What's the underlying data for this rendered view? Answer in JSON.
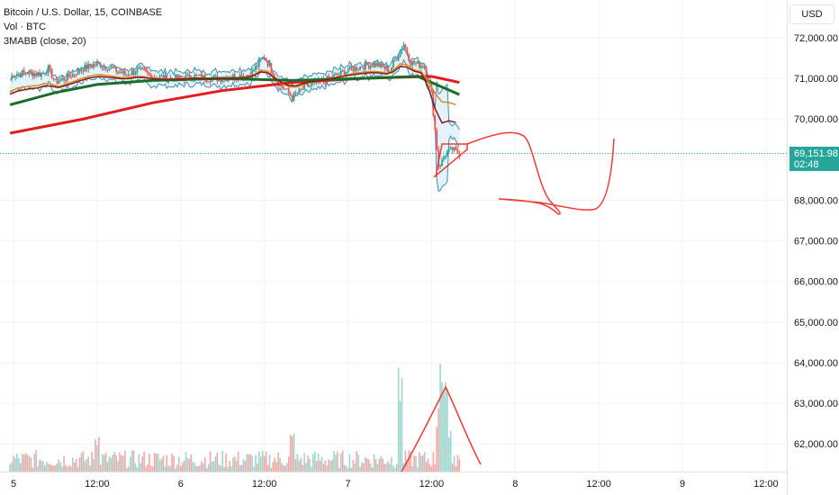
{
  "legend": {
    "symbol": "Bitcoin / U.S. Dollar, 15, COINBASE",
    "volume": "Vol · BTC",
    "indicator": "3MABB (close, 20)"
  },
  "currency_button": "USD",
  "last_price": {
    "value": "69,151.98",
    "countdown": "02:48",
    "color": "#26a69a"
  },
  "colors": {
    "up": "#26a69a",
    "down": "#ef5350",
    "vol_up": "#9fd5cf",
    "vol_down": "#f4a8a6",
    "ma_long": "#e02020",
    "ma_mid": "#1e6b2a",
    "ma_short": "#8b1a1a",
    "ma_fast": "#e08a1e",
    "band": "#3d8fb5",
    "band_fill": "#e3f2fb",
    "drawing": "#ef3b36",
    "grid": "#f0f3fa"
  },
  "chart_data": {
    "type": "candlestick",
    "price_axis": {
      "ticks": [
        "72,000.00",
        "71,000.00",
        "70,000.00",
        "69,000.00",
        "68,000.00",
        "67,000.00",
        "66,000.00",
        "65,000.00",
        "64,000.00",
        "63,000.00",
        "62,000.00"
      ],
      "tick_values": [
        72000,
        71000,
        70000,
        69000,
        68000,
        67000,
        66000,
        65000,
        64000,
        63000,
        62000
      ]
    },
    "time_axis": {
      "labels": [
        "5",
        "12:00",
        "6",
        "12:00",
        "7",
        "12:00",
        "8",
        "12:00",
        "9",
        "12:00"
      ],
      "label_times": [
        0,
        12,
        24,
        36,
        48,
        60,
        72,
        84,
        96,
        108
      ]
    },
    "last_price": 69151.98,
    "price_points_hours": [
      [
        -0.5,
        71000
      ],
      [
        0,
        71100
      ],
      [
        2,
        71150
      ],
      [
        4,
        71100
      ],
      [
        5,
        71250
      ],
      [
        6,
        70900
      ],
      [
        8,
        71050
      ],
      [
        10,
        71250
      ],
      [
        12,
        71350
      ],
      [
        14,
        71250
      ],
      [
        16,
        71100
      ],
      [
        18,
        71200
      ],
      [
        20,
        71050
      ],
      [
        22,
        71000
      ],
      [
        24,
        71000
      ],
      [
        26,
        71050
      ],
      [
        28,
        71000
      ],
      [
        30,
        71000
      ],
      [
        32,
        71050
      ],
      [
        34,
        71100
      ],
      [
        36,
        71550
      ],
      [
        38,
        70900
      ],
      [
        40,
        70550
      ],
      [
        42,
        70800
      ],
      [
        44,
        70900
      ],
      [
        46,
        71050
      ],
      [
        48,
        71200
      ],
      [
        50,
        71300
      ],
      [
        52,
        71350
      ],
      [
        54,
        71200
      ],
      [
        56,
        71850
      ],
      [
        57,
        71400
      ],
      [
        58,
        71350
      ],
      [
        59,
        71300
      ],
      [
        60,
        70600
      ],
      [
        61,
        68850
      ],
      [
        61.5,
        68950
      ],
      [
        62,
        69150
      ],
      [
        63,
        69250
      ],
      [
        64,
        69150
      ]
    ],
    "volume_spikes_hours": [
      [
        12,
        1
      ],
      [
        40,
        1
      ],
      [
        55.5,
        2.6
      ],
      [
        61.5,
        2.7
      ],
      [
        62,
        2.3
      ]
    ],
    "ma_long_points": [
      [
        -0.5,
        69650
      ],
      [
        10,
        70000
      ],
      [
        20,
        70400
      ],
      [
        30,
        70700
      ],
      [
        40,
        70900
      ],
      [
        50,
        71000
      ],
      [
        60,
        71050
      ],
      [
        64,
        70900
      ]
    ],
    "ma_mid_points": [
      [
        -0.5,
        70350
      ],
      [
        6,
        70650
      ],
      [
        12,
        70850
      ],
      [
        20,
        70950
      ],
      [
        30,
        71000
      ],
      [
        40,
        70950
      ],
      [
        50,
        71000
      ],
      [
        58,
        71050
      ],
      [
        62,
        70750
      ],
      [
        64,
        70600
      ]
    ]
  }
}
